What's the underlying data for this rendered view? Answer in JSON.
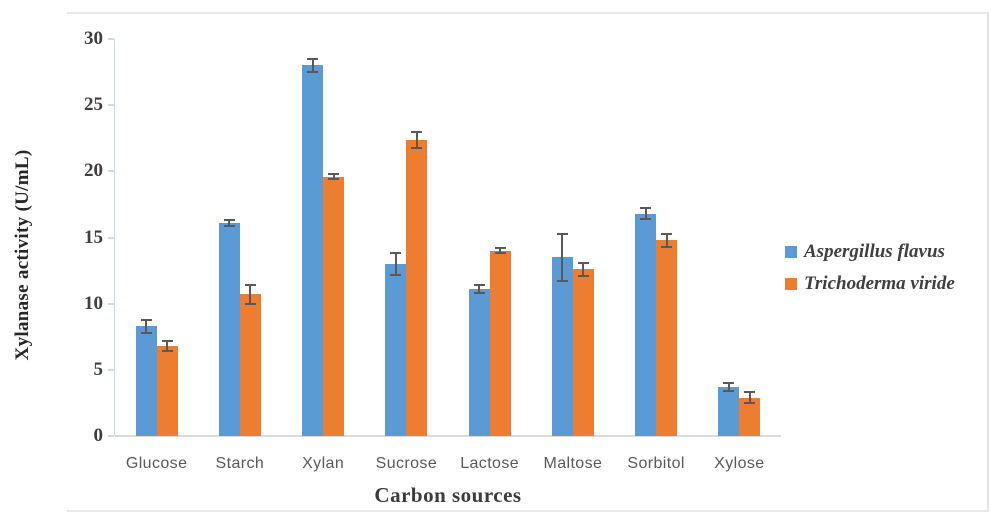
{
  "chart_data": {
    "type": "bar",
    "title": "",
    "xlabel": "Carbon sources",
    "ylabel": "Xylanase activity (U/mL)",
    "ylim": [
      0,
      30
    ],
    "yticks": [
      0,
      5,
      10,
      15,
      20,
      25,
      30
    ],
    "grid": false,
    "legend_position": "right",
    "error_bars": true,
    "categories": [
      "Glucose",
      "Starch",
      "Xylan",
      "Sucrose",
      "Lactose",
      "Maltose",
      "Sorbitol",
      "Xylose"
    ],
    "series": [
      {
        "name": "Aspergillus flavus",
        "color": "#5B9BD5",
        "values": [
          8.3,
          16.1,
          28.0,
          13.0,
          11.1,
          13.5,
          16.8,
          3.7
        ],
        "errors": [
          0.5,
          0.2,
          0.5,
          0.8,
          0.3,
          1.8,
          0.4,
          0.3
        ]
      },
      {
        "name": "Trichoderma viride",
        "color": "#ED7D31",
        "values": [
          6.8,
          10.7,
          19.6,
          22.4,
          14.0,
          12.6,
          14.8,
          2.9
        ],
        "errors": [
          0.4,
          0.7,
          0.2,
          0.6,
          0.2,
          0.5,
          0.5,
          0.4
        ]
      }
    ],
    "error_color": "#595959"
  }
}
